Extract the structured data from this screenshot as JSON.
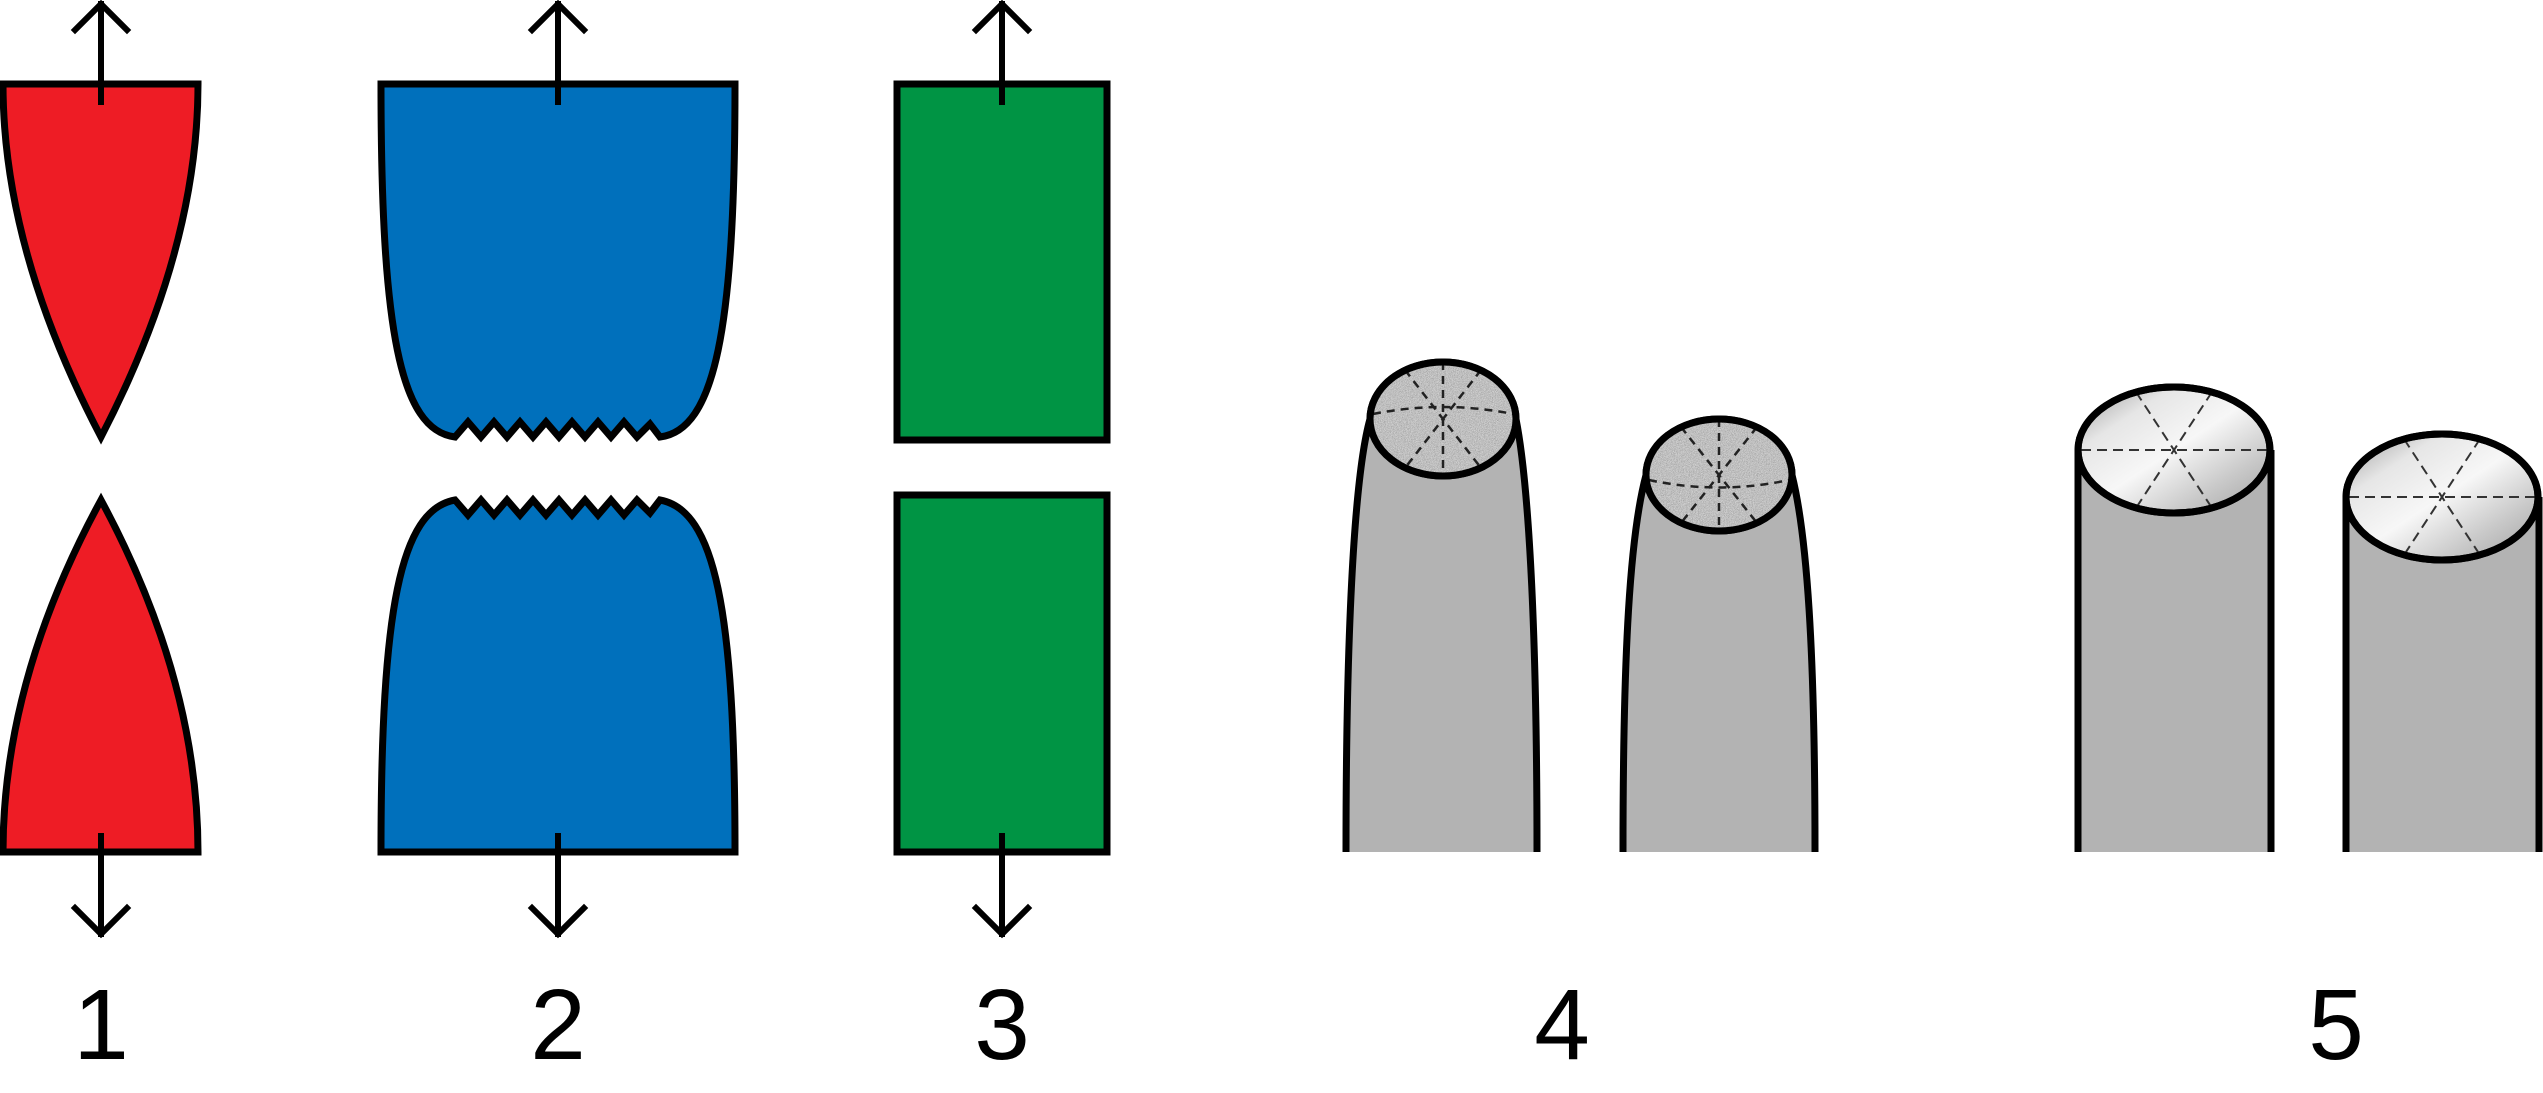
{
  "colors": {
    "red": "#ee1c25",
    "blue": "#0070bc",
    "green": "#009444",
    "gray": "#b3b3b3",
    "outline": "#000000"
  },
  "panels": [
    {
      "label": "1",
      "fracture": "brittle-cone-tips",
      "color": "red"
    },
    {
      "label": "2",
      "fracture": "necked-jagged",
      "color": "blue"
    },
    {
      "label": "3",
      "fracture": "flat-straight",
      "color": "green"
    },
    {
      "label": "4",
      "fracture": "cup-rough-granular",
      "color": "gray"
    },
    {
      "label": "5",
      "fracture": "flat-smooth",
      "color": "gray"
    }
  ]
}
